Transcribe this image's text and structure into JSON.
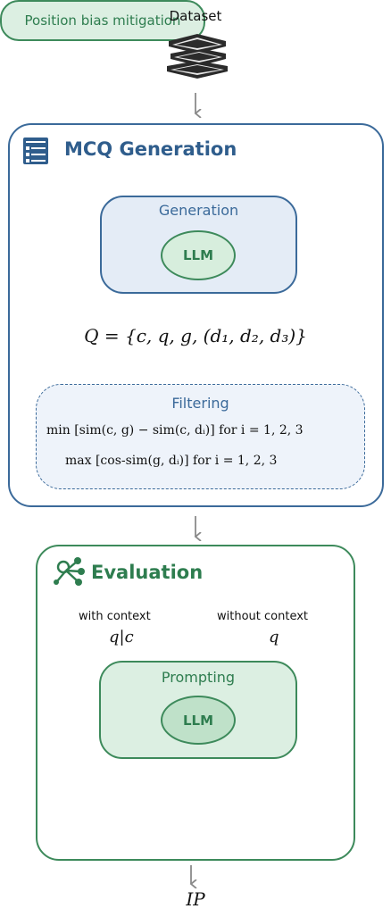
{
  "dataset": {
    "label": "Dataset",
    "icon": "books-stack-icon"
  },
  "mcq_generation": {
    "title": "MCQ Generation",
    "icon": "list-document-icon",
    "generation": {
      "label": "Generation",
      "llm": "LLM"
    },
    "question_formula": "Q = {c, q, g, (d₁, d₂, d₃)}",
    "filtering": {
      "label": "Filtering",
      "line1": "min [sim(c, g) − sim(c, dᵢ)]    for i = 1, 2, 3",
      "line2": "max [cos-sim(g, dᵢ)]    for i = 1, 2, 3"
    }
  },
  "evaluation": {
    "title": "Evaluation",
    "icon": "network-nodes-icon",
    "with_context": {
      "label": "with context",
      "math": "q|c"
    },
    "without_context": {
      "label": "without context",
      "math": "q"
    },
    "prompting": {
      "label": "Prompting",
      "llm": "LLM"
    },
    "bias_mitigation": "Position bias mitigation"
  },
  "output": {
    "label": "IP"
  },
  "colors": {
    "blue": "#3b6a9a",
    "green": "#3d8a5b",
    "arrow": "#8a8a8a"
  }
}
